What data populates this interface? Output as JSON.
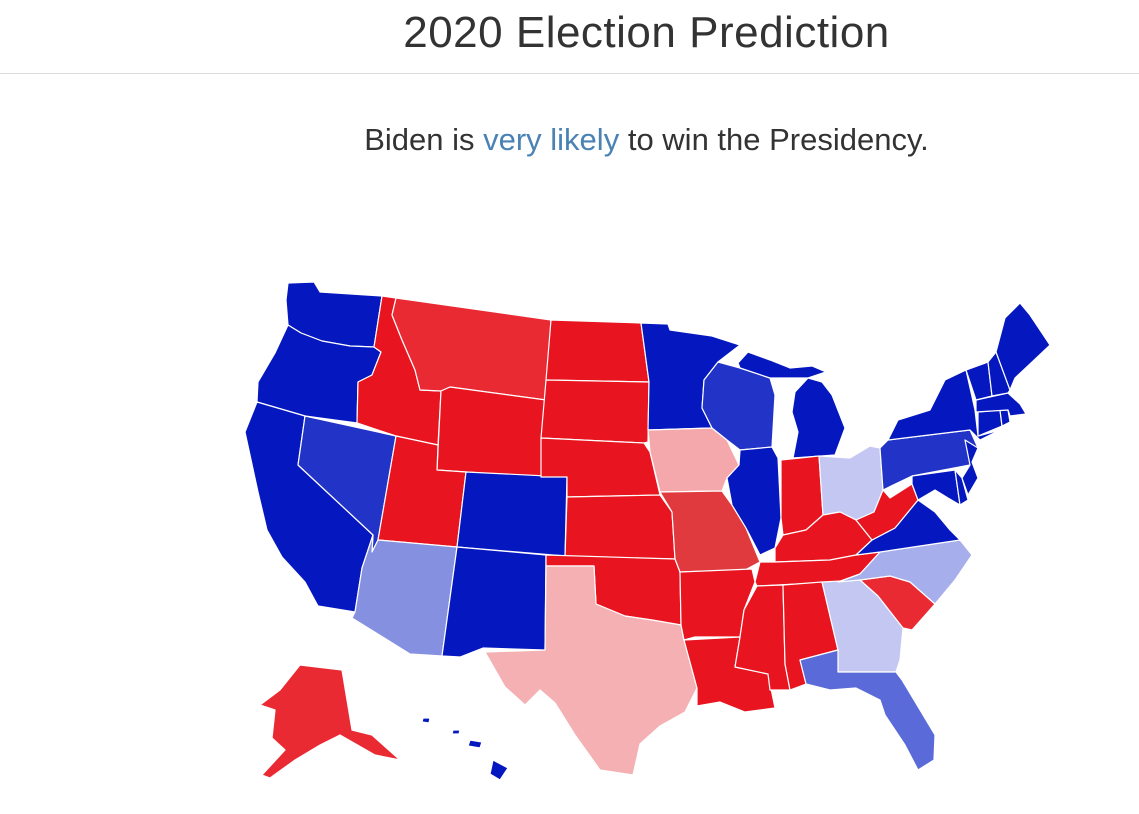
{
  "header": {
    "title": "2020 Election Prediction"
  },
  "summary": {
    "prefix": "Biden is",
    "likelihood": "very likely",
    "suffix": "to win the Presidency."
  },
  "colors": {
    "safe_d": "#0518bf",
    "likely_d": "#2234c8",
    "lean_d": "#5a6bd9",
    "tilt_d": "#8590e0",
    "toss_d": "#a7aeec",
    "faint_d": "#c3c7f2",
    "safe_r": "#e8141f",
    "likely_r": "#ea2a33",
    "lean_r": "#e03a3e",
    "tilt_r": "#f4b0b3",
    "faint_r": "#f5a8ac",
    "background": "#ffffff",
    "accent_text": "#4a82b4"
  },
  "states": {
    "WA": "safe_d",
    "OR": "safe_d",
    "CA": "safe_d",
    "NV": "likely_d",
    "ID": "safe_r",
    "MT": "likely_r",
    "WY": "safe_r",
    "UT": "safe_r",
    "AZ": "tilt_d",
    "CO": "safe_d",
    "NM": "safe_d",
    "ND": "safe_r",
    "SD": "safe_r",
    "NE": "safe_r",
    "KS": "safe_r",
    "OK": "safe_r",
    "TX": "tilt_r",
    "MN": "safe_d",
    "IA": "faint_r",
    "MO": "lean_r",
    "AR": "safe_r",
    "LA": "safe_r",
    "WI": "likely_d",
    "IL": "safe_d",
    "MI": "safe_d",
    "IN": "safe_r",
    "OH": "faint_d",
    "KY": "safe_r",
    "TN": "safe_r",
    "MS": "safe_r",
    "AL": "safe_r",
    "GA": "faint_d",
    "FL": "lean_d",
    "SC": "likely_r",
    "NC": "toss_d",
    "VA": "safe_d",
    "WV": "safe_r",
    "PA": "likely_d",
    "NY": "safe_d",
    "ME": "safe_d",
    "VT": "safe_d",
    "NH": "safe_d",
    "MA": "safe_d",
    "CT": "safe_d",
    "RI": "safe_d",
    "NJ": "safe_d",
    "DE": "safe_d",
    "MD": "safe_d",
    "AK": "likely_r",
    "HI": "safe_d"
  }
}
